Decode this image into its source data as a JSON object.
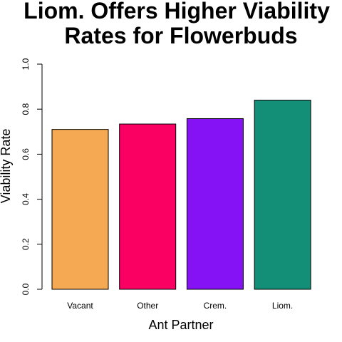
{
  "chart_data": {
    "type": "bar",
    "title": "Liom. Offers Higher Viability Rates for Flowerbuds",
    "title_lines": [
      "Liom. Offers Higher Viability",
      "Rates for Flowerbuds"
    ],
    "xlabel": "Ant Partner",
    "ylabel": "Viability Rate",
    "categories": [
      "Vacant",
      "Other",
      "Crem.",
      "Liom."
    ],
    "values": [
      0.71,
      0.734,
      0.758,
      0.84
    ],
    "colors": [
      "#F5A952",
      "#FA0063",
      "#8412F5",
      "#148F77"
    ],
    "ylim": [
      0,
      1
    ],
    "yticks": [
      "0.0",
      "0.2",
      "0.4",
      "0.6",
      "0.8",
      "1.0"
    ],
    "grid": false,
    "legend": "none"
  }
}
